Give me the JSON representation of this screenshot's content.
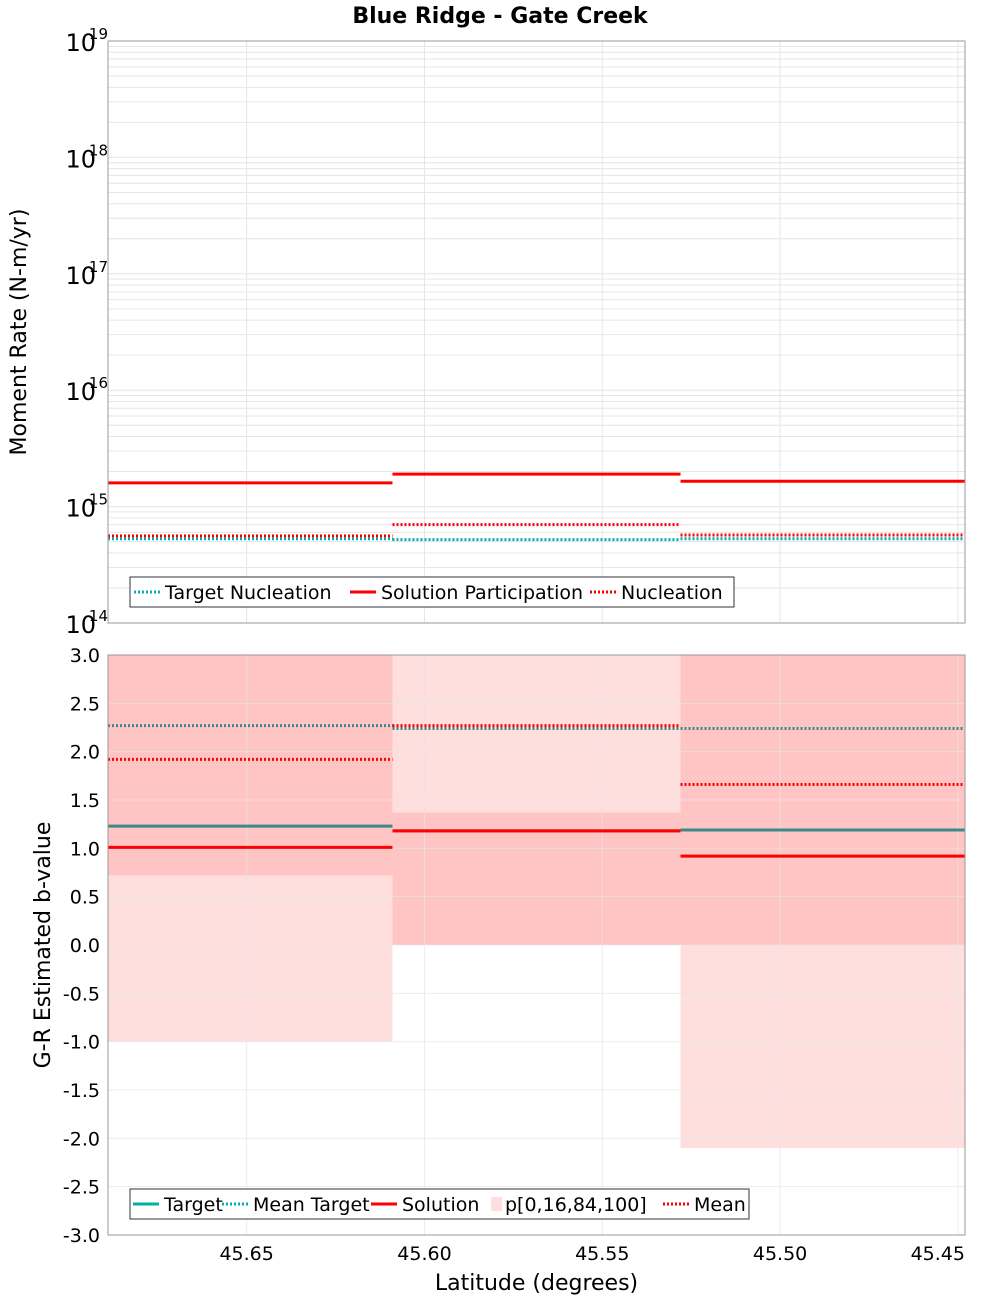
{
  "title": "Blue Ridge - Gate Creek",
  "colors": {
    "red": "#ff0000",
    "teal": "#00b0b0",
    "teal_dark": "#3a8a8a",
    "band_outer": "#ffdede",
    "band_inner": "#ffc4c4",
    "grid": "#e6e6e6"
  },
  "chart_data": [
    {
      "type": "line",
      "ylabel": "Moment Rate (N-m/yr)",
      "yscale": "log",
      "ylim": [
        100000000000000.0,
        1e+19
      ],
      "xlim": [
        45.689,
        45.448
      ],
      "y_tick_bases": [
        "10",
        "10",
        "10",
        "10",
        "10",
        "10"
      ],
      "y_tick_exponents": [
        "14",
        "15",
        "16",
        "17",
        "18",
        "19"
      ],
      "grid": true,
      "legend_position": "bottom-left",
      "segments": [
        [
          45.689,
          45.609
        ],
        [
          45.609,
          45.528
        ],
        [
          45.528,
          45.448
        ]
      ],
      "series": [
        {
          "name": "Target Nucleation",
          "style": "dotted",
          "color": "#00b0b0",
          "values": [
            530000000000000.0,
            520000000000000.0,
            530000000000000.0
          ]
        },
        {
          "name": "Solution Participation",
          "style": "solid",
          "color": "#ff0000",
          "values": [
            1600000000000000.0,
            1900000000000000.0,
            1650000000000000.0
          ]
        },
        {
          "name": "Nucleation",
          "style": "dotted",
          "color": "#ff0000",
          "values": [
            560000000000000.0,
            700000000000000.0,
            570000000000000.0
          ]
        }
      ]
    },
    {
      "type": "line",
      "xlabel": "Latitude (degrees)",
      "ylabel": "G-R Estimated b-value",
      "ylim": [
        -3.0,
        3.0
      ],
      "xlim": [
        45.689,
        45.448
      ],
      "x_ticks": [
        {
          "value": 45.65,
          "label": "45.65"
        },
        {
          "value": 45.6,
          "label": "45.60"
        },
        {
          "value": 45.55,
          "label": "45.55"
        },
        {
          "value": 45.5,
          "label": "45.50"
        },
        {
          "value": 45.45,
          "label": "45.45"
        }
      ],
      "y_ticks": [
        {
          "value": 3.0,
          "label": "3.0"
        },
        {
          "value": 2.5,
          "label": "2.5"
        },
        {
          "value": 2.0,
          "label": "2.0"
        },
        {
          "value": 1.5,
          "label": "1.5"
        },
        {
          "value": 1.0,
          "label": "1.0"
        },
        {
          "value": 0.5,
          "label": "0.5"
        },
        {
          "value": 0.0,
          "label": "0.0"
        },
        {
          "value": -0.5,
          "label": "-0.5"
        },
        {
          "value": -1.0,
          "label": "-1.0"
        },
        {
          "value": -1.5,
          "label": "-1.5"
        },
        {
          "value": -2.0,
          "label": "-2.0"
        },
        {
          "value": -2.5,
          "label": "-2.5"
        },
        {
          "value": -3.0,
          "label": "-3.0"
        }
      ],
      "grid": true,
      "legend_position": "bottom-left",
      "segments": [
        [
          45.689,
          45.609
        ],
        [
          45.609,
          45.528
        ],
        [
          45.528,
          45.448
        ]
      ],
      "bands": {
        "name": "p[0,16,84,100]",
        "p0": [
          -1.0,
          0.0,
          -2.1
        ],
        "p16": [
          0.72,
          0.0,
          0.0
        ],
        "p84": [
          3.0,
          1.37,
          3.0
        ],
        "p100": [
          3.0,
          3.0,
          3.0
        ]
      },
      "series": [
        {
          "name": "Target",
          "style": "solid",
          "color": "#3a8a8a",
          "values": [
            1.23,
            1.18,
            1.19
          ]
        },
        {
          "name": "Mean Target",
          "style": "dotted",
          "color": "#3a8a8a",
          "values": [
            2.27,
            2.24,
            2.24
          ]
        },
        {
          "name": "Solution",
          "style": "solid",
          "color": "#ff0000",
          "values": [
            1.01,
            1.18,
            0.92
          ]
        },
        {
          "name": "Mean",
          "style": "dotted",
          "color": "#ff0000",
          "values": [
            1.92,
            2.27,
            1.66
          ]
        }
      ]
    }
  ]
}
